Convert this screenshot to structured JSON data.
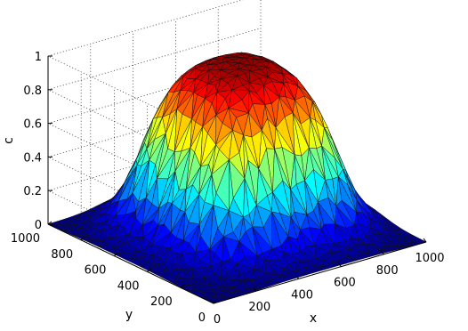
{
  "chart_data": {
    "type": "surface",
    "title": "",
    "xlabel": "x",
    "ylabel": "y",
    "zlabel": "c",
    "xlim": [
      0,
      1000
    ],
    "ylim": [
      0,
      1000
    ],
    "zlim": [
      0,
      1
    ],
    "xticks": [
      "0",
      "200",
      "400",
      "600",
      "800",
      "1000"
    ],
    "yticks": [
      "0",
      "200",
      "400",
      "600",
      "800",
      "1000"
    ],
    "zticks": [
      "0",
      "0.2",
      "0.4",
      "0.6",
      "0.8",
      "1"
    ],
    "colormap": "jet",
    "grid": true,
    "mesh": "triangulated",
    "plateau": {
      "x_range": [
        250,
        850
      ],
      "y_range": [
        250,
        850
      ],
      "value": 1,
      "base_value": 0
    }
  }
}
